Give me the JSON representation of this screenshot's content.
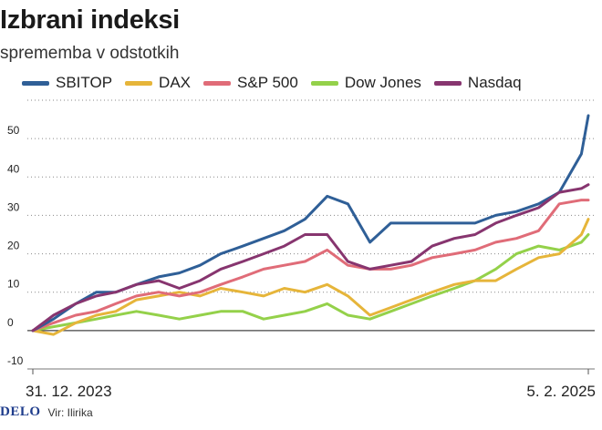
{
  "header": {
    "title": "Izbrani indeksi",
    "subtitle": "sprememba v odstotkih"
  },
  "footer": {
    "logo": "DELO",
    "source": "Vir: Ilirika"
  },
  "colors": {
    "SBITOP": "#2f5f97",
    "DAX": "#e6b53a",
    "S&P 500": "#e06c78",
    "Dow Jones": "#94d14a",
    "Nasdaq": "#87356f",
    "grid": "#8a8a8a",
    "zero": "#444444"
  },
  "chart_data": {
    "type": "line",
    "title": "Izbrani indeksi",
    "subtitle": "sprememba v odstotkih",
    "ylim": [
      -10,
      60
    ],
    "yticks": [
      -10,
      0,
      10,
      20,
      30,
      40,
      50
    ],
    "xlim": [
      "2023-12-31",
      "2025-02-05"
    ],
    "x_tick_labels": [
      "31. 12. 2023",
      "5. 2. 2025"
    ],
    "legend": "top",
    "grid": true,
    "x": [
      "2023-12-31",
      "2024-01-15",
      "2024-01-31",
      "2024-02-15",
      "2024-02-29",
      "2024-03-15",
      "2024-03-31",
      "2024-04-15",
      "2024-04-30",
      "2024-05-15",
      "2024-05-31",
      "2024-06-15",
      "2024-06-30",
      "2024-07-15",
      "2024-07-31",
      "2024-08-15",
      "2024-08-31",
      "2024-09-15",
      "2024-09-30",
      "2024-10-15",
      "2024-10-31",
      "2024-11-15",
      "2024-11-30",
      "2024-12-15",
      "2024-12-31",
      "2025-01-15",
      "2025-01-31",
      "2025-02-05"
    ],
    "series": [
      {
        "name": "SBITOP",
        "values": [
          0,
          3,
          7,
          10,
          10,
          12,
          14,
          15,
          17,
          20,
          22,
          24,
          26,
          29,
          35,
          33,
          23,
          28,
          28,
          28,
          28,
          28,
          30,
          31,
          33,
          36,
          46,
          56
        ]
      },
      {
        "name": "DAX",
        "values": [
          0,
          -1,
          2,
          4,
          5,
          8,
          9,
          10,
          9,
          11,
          10,
          9,
          11,
          10,
          12,
          9,
          4,
          6,
          8,
          10,
          12,
          13,
          13,
          16,
          19,
          20,
          25,
          29
        ]
      },
      {
        "name": "S&P 500",
        "values": [
          0,
          2,
          4,
          5,
          7,
          9,
          10,
          9,
          10,
          12,
          14,
          16,
          17,
          18,
          21,
          17,
          16,
          16,
          17,
          19,
          20,
          21,
          23,
          24,
          26,
          33,
          34,
          34
        ]
      },
      {
        "name": "Dow Jones",
        "values": [
          0,
          1,
          2,
          3,
          4,
          5,
          4,
          3,
          4,
          5,
          5,
          3,
          4,
          5,
          7,
          4,
          3,
          5,
          7,
          9,
          11,
          13,
          16,
          20,
          22,
          21,
          23,
          25
        ]
      },
      {
        "name": "Nasdaq",
        "values": [
          0,
          4,
          7,
          9,
          10,
          12,
          13,
          11,
          13,
          16,
          18,
          20,
          22,
          25,
          25,
          18,
          16,
          17,
          18,
          22,
          24,
          25,
          28,
          30,
          32,
          36,
          37,
          38
        ]
      }
    ]
  }
}
